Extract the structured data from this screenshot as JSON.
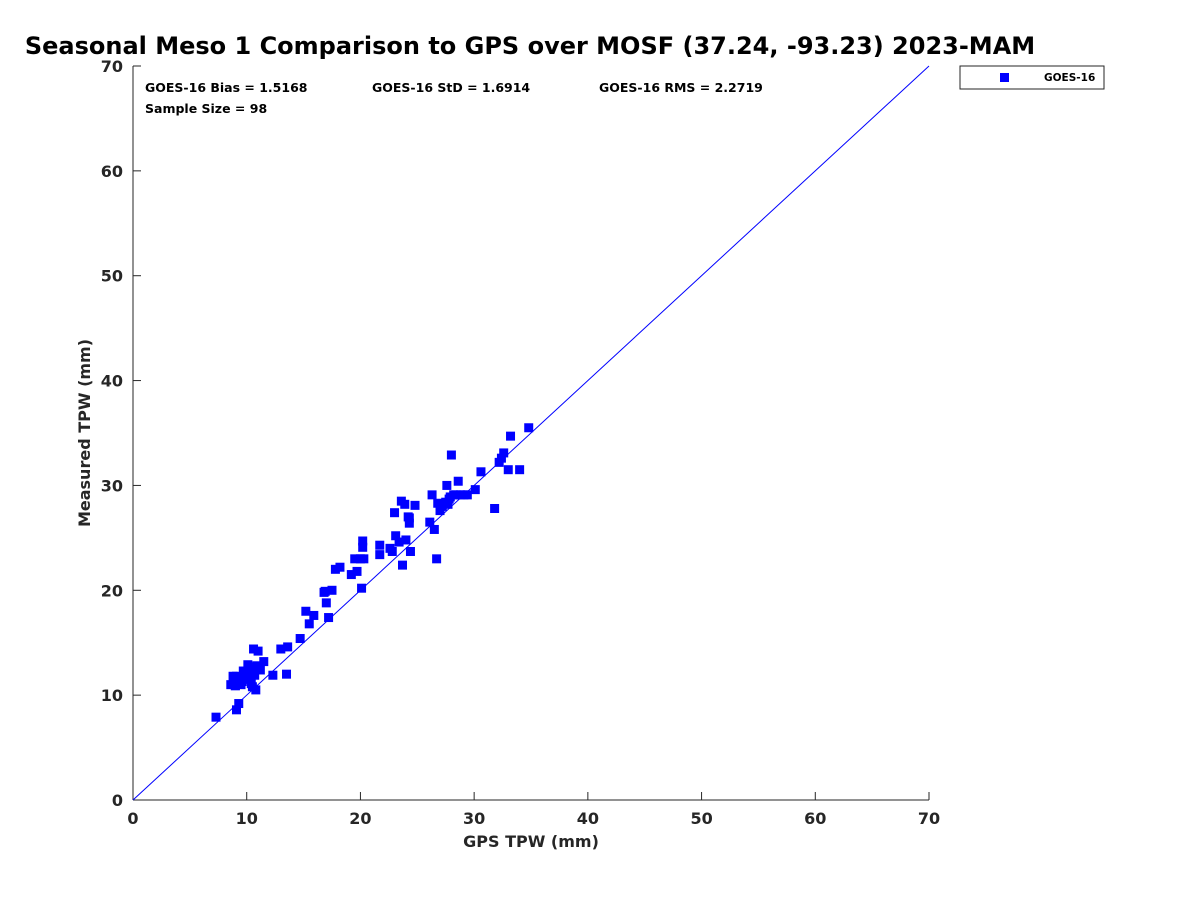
{
  "chart_data": {
    "type": "scatter",
    "title": "Seasonal Meso 1 Comparison to GPS over MOSF (37.24, -93.23) 2023-MAM",
    "xlabel": "GPS TPW (mm)",
    "ylabel": "Measured TPW (mm)",
    "xlim": [
      0,
      70
    ],
    "ylim": [
      0,
      70
    ],
    "xticks": [
      "0",
      "10",
      "20",
      "30",
      "40",
      "50",
      "60",
      "70"
    ],
    "yticks": [
      "0",
      "10",
      "20",
      "30",
      "40",
      "50",
      "60",
      "70"
    ],
    "legend": {
      "position": "top-right, outside axes",
      "entries": [
        "GOES-16"
      ]
    },
    "reference_line": {
      "label": "1:1 line",
      "x": [
        0,
        70
      ],
      "y": [
        0,
        70
      ],
      "color": "#0000ff"
    },
    "stats": {
      "bias": "GOES-16 Bias = 1.5168",
      "std": "GOES-16 StD = 1.6914",
      "rms": "GOES-16 RMS = 2.2719",
      "sample": "Sample Size = 98"
    },
    "series": [
      {
        "name": "GOES-16",
        "color": "#0000ff",
        "marker": "square",
        "x": [
          7.3,
          8.6,
          8.8,
          9.0,
          9.1,
          9.3,
          8.9,
          9.2,
          9.5,
          9.7,
          9.8,
          10.0,
          10.1,
          10.2,
          10.3,
          10.4,
          10.5,
          10.6,
          10.7,
          10.8,
          10.9,
          11.0,
          11.2,
          11.5,
          10.5,
          10.9,
          9.6,
          9.1,
          9.0,
          10.3,
          12.3,
          13.0,
          13.6,
          13.5,
          14.7,
          15.2,
          15.5,
          15.9,
          16.8,
          17.0,
          17.2,
          17.5,
          17.8,
          18.2,
          16.9,
          19.2,
          19.5,
          19.7,
          20.0,
          20.1,
          20.2,
          20.2,
          20.3,
          21.7,
          21.7,
          22.6,
          22.8,
          23.0,
          23.1,
          23.4,
          23.6,
          23.7,
          23.9,
          24.0,
          24.2,
          24.3,
          24.3,
          24.4,
          24.8,
          26.1,
          26.3,
          26.5,
          26.7,
          26.8,
          27.0,
          27.2,
          27.5,
          27.6,
          27.7,
          27.9,
          28.0,
          28.2,
          28.6,
          28.8,
          29.1,
          29.4,
          30.1,
          30.6,
          31.8,
          32.2,
          32.4,
          32.6,
          33.0,
          33.2,
          34.0,
          34.8,
          27.8,
          28.4
        ],
        "y": [
          7.9,
          11.0,
          11.8,
          10.9,
          8.6,
          9.2,
          11.2,
          11.6,
          11.0,
          12.3,
          11.5,
          12.1,
          12.9,
          11.7,
          12.4,
          11.1,
          12.5,
          14.4,
          11.9,
          10.5,
          12.8,
          14.2,
          12.4,
          13.2,
          10.8,
          12.5,
          11.3,
          11.8,
          10.9,
          12.7,
          11.9,
          14.4,
          14.6,
          12.0,
          15.4,
          18.0,
          16.8,
          17.6,
          19.8,
          18.8,
          17.4,
          20.0,
          22.0,
          22.2,
          19.9,
          21.5,
          23.0,
          21.8,
          23.0,
          20.2,
          24.7,
          24.1,
          23.0,
          24.3,
          23.4,
          24.0,
          23.7,
          27.4,
          25.2,
          24.6,
          28.5,
          22.4,
          28.2,
          24.8,
          27.0,
          26.4,
          26.9,
          23.7,
          28.1,
          26.5,
          29.1,
          25.8,
          23.0,
          28.3,
          27.6,
          28.0,
          28.4,
          30.0,
          28.2,
          28.9,
          32.9,
          29.1,
          30.4,
          29.1,
          29.1,
          29.1,
          29.6,
          31.3,
          27.8,
          32.2,
          32.6,
          33.1,
          31.5,
          34.7,
          31.5,
          35.5,
          28.7,
          29.1
        ]
      }
    ]
  }
}
